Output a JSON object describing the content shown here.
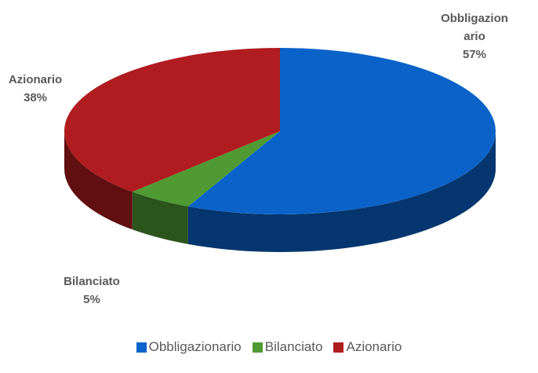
{
  "chart_data": {
    "type": "pie",
    "categories": [
      "Obbligazionario",
      "Bilanciato",
      "Azionario"
    ],
    "values": [
      57,
      5,
      38
    ],
    "value_labels": [
      "57%",
      "5%",
      "38%"
    ],
    "colors": [
      "#0b63c9",
      "#4f9a33",
      "#b01c1f"
    ],
    "legend": "bottom"
  }
}
